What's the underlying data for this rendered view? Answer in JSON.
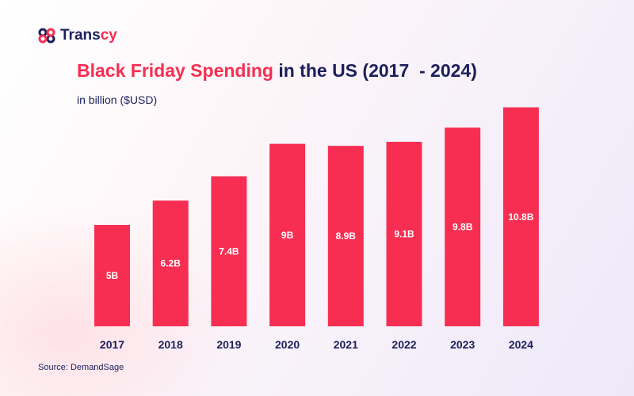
{
  "brand": {
    "name_main": "Trans",
    "name_accent": "cy",
    "logo_icon": "linked-rings-logo-icon"
  },
  "title": {
    "highlight": "Black Friday Spending",
    "rest": " in the US (2017  - 2024)"
  },
  "subtitle": "in billion ($USD)",
  "source": "Source: DemandSage",
  "colors": {
    "bar": "#f72e52",
    "text": "#1c1f5c",
    "accent": "#f72e52"
  },
  "chart_data": {
    "type": "bar",
    "title": "Black Friday Spending in the US (2017  - 2024)",
    "ylabel": "in billion ($USD)",
    "categories": [
      "2017",
      "2018",
      "2019",
      "2020",
      "2021",
      "2022",
      "2023",
      "2024"
    ],
    "values": [
      5,
      6.2,
      7.4,
      9,
      8.9,
      9.1,
      9.8,
      10.8
    ],
    "data_labels": [
      "5B",
      "6.2B",
      "7.4B",
      "9B",
      "8.9B",
      "9.1B",
      "9.8B",
      "10.8B"
    ],
    "ylim": [
      0,
      10.8
    ],
    "grid": false,
    "legend": "none"
  }
}
